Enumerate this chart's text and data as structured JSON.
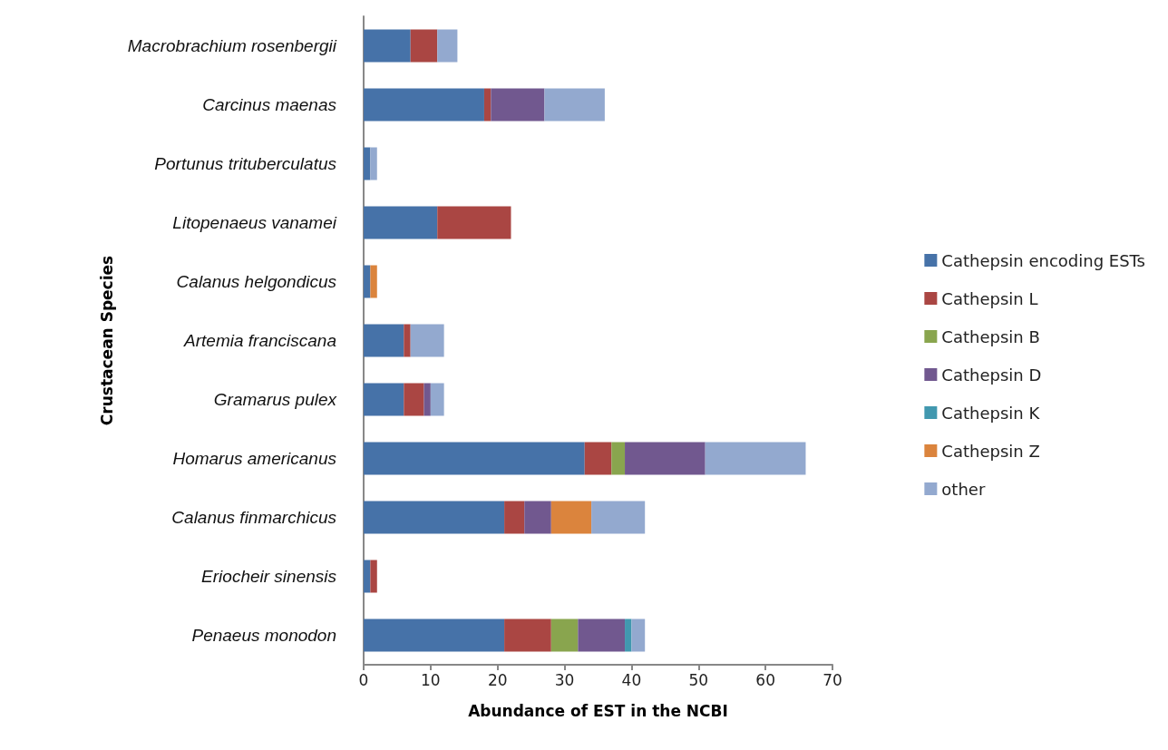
{
  "chart_data": {
    "type": "bar",
    "orientation": "horizontal",
    "stacked": true,
    "xlabel": "Abundance of EST in the NCBI",
    "ylabel": "Crustacean Species",
    "categories": [
      "Macrobrachium rosenbergii",
      "Carcinus maenas",
      "Portunus trituberculatus",
      "Litopenaeus vanamei",
      "Calanus helgondicus",
      "Artemia franciscana",
      "Gramarus pulex",
      "Homarus americanus",
      "Calanus finmarchicus",
      "Eriocheir sinensis",
      "Penaeus monodon"
    ],
    "series": [
      {
        "name": "Cathepsin encoding ESTs",
        "color": "#4672a8",
        "values": [
          7,
          18,
          1,
          11,
          1,
          6,
          6,
          33,
          21,
          1,
          21
        ]
      },
      {
        "name": "Cathepsin L",
        "color": "#aa4643",
        "values": [
          4,
          1,
          null,
          11,
          null,
          1,
          3,
          4,
          3,
          1,
          7
        ]
      },
      {
        "name": "Cathepsin B",
        "color": "#89a54e",
        "values": [
          null,
          null,
          null,
          null,
          null,
          null,
          null,
          2,
          null,
          null,
          4
        ]
      },
      {
        "name": "Cathepsin D",
        "color": "#71588f",
        "values": [
          null,
          8,
          null,
          null,
          null,
          null,
          1,
          12,
          4,
          null,
          7
        ]
      },
      {
        "name": "Cathepsin K",
        "color": "#4198af",
        "values": [
          null,
          null,
          null,
          null,
          null,
          null,
          null,
          null,
          null,
          null,
          1
        ]
      },
      {
        "name": "Cathepsin Z",
        "color": "#db843d",
        "values": [
          null,
          null,
          null,
          null,
          1,
          null,
          null,
          null,
          6,
          null,
          null
        ]
      },
      {
        "name": "other",
        "color": "#93a9cf",
        "values": [
          3,
          9,
          1,
          null,
          null,
          5,
          2,
          15,
          8,
          null,
          2
        ]
      }
    ],
    "xlim": [
      0,
      70
    ],
    "xticks": [
      0,
      10,
      20,
      30,
      40,
      50,
      60,
      70
    ],
    "grid": false,
    "legend": "right"
  }
}
